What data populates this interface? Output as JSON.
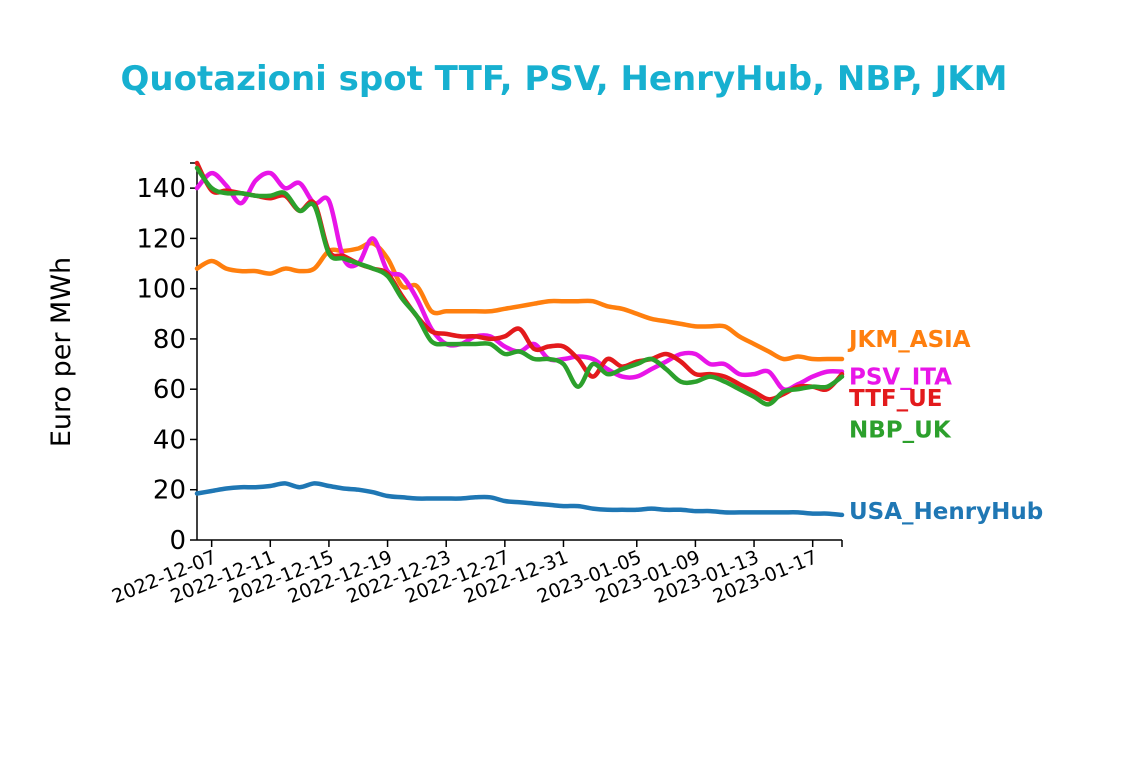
{
  "chart_data": {
    "type": "line",
    "title": "Quotazioni spot TTF, PSV, HenryHub, NBP, JKM",
    "xlabel": "",
    "ylabel": "Euro per MWh",
    "ylim": [
      0,
      150
    ],
    "yticks": [
      0,
      20,
      40,
      60,
      80,
      100,
      120,
      140
    ],
    "xlim": [
      "2022-12-06",
      "2023-01-19"
    ],
    "xticks": [
      "2022-12-07",
      "2022-12-11",
      "2022-12-15",
      "2022-12-19",
      "2022-12-23",
      "2022-12-27",
      "2022-12-31",
      "2023-01-05",
      "2023-01-09",
      "2023-01-13",
      "2023-01-17"
    ],
    "grid": false,
    "legend": "none",
    "x": [
      "2022-12-06",
      "2022-12-07",
      "2022-12-08",
      "2022-12-09",
      "2022-12-10",
      "2022-12-11",
      "2022-12-12",
      "2022-12-13",
      "2022-12-14",
      "2022-12-15",
      "2022-12-16",
      "2022-12-17",
      "2022-12-18",
      "2022-12-19",
      "2022-12-20",
      "2022-12-21",
      "2022-12-22",
      "2022-12-23",
      "2022-12-24",
      "2022-12-25",
      "2022-12-26",
      "2022-12-27",
      "2022-12-28",
      "2022-12-29",
      "2022-12-30",
      "2022-12-31",
      "2023-01-01",
      "2023-01-02",
      "2023-01-03",
      "2023-01-04",
      "2023-01-05",
      "2023-01-06",
      "2023-01-07",
      "2023-01-08",
      "2023-01-09",
      "2023-01-10",
      "2023-01-11",
      "2023-01-12",
      "2023-01-13",
      "2023-01-14",
      "2023-01-15",
      "2023-01-16",
      "2023-01-17",
      "2023-01-18",
      "2023-01-19"
    ],
    "series": [
      {
        "name": "JKM_ASIA",
        "color": "#ff7f0e",
        "values": [
          108,
          111,
          108,
          107,
          107,
          106,
          108,
          107,
          108,
          115,
          115,
          116,
          118,
          112,
          101,
          101,
          91,
          91,
          91,
          91,
          91,
          92,
          93,
          94,
          95,
          95,
          95,
          95,
          93,
          92,
          90,
          88,
          87,
          86,
          85,
          85,
          85,
          81,
          78,
          75,
          72,
          73,
          72,
          72,
          72
        ]
      },
      {
        "name": "PSV_ITA",
        "color": "#e815e8",
        "values": [
          140,
          146,
          141,
          134,
          143,
          146,
          140,
          142,
          134,
          135,
          112,
          110,
          120,
          107,
          105,
          96,
          84,
          78,
          78,
          81,
          81,
          77,
          75,
          78,
          72,
          72,
          73,
          72,
          68,
          65,
          65,
          68,
          71,
          74,
          74,
          70,
          70,
          66,
          66,
          67,
          60,
          62,
          65,
          67,
          67
        ]
      },
      {
        "name": "TTF_UE",
        "color": "#e31a1c",
        "values": [
          150,
          139,
          139,
          138,
          137,
          136,
          137,
          131,
          134,
          115,
          113,
          110,
          108,
          106,
          97,
          89,
          83,
          82,
          81,
          81,
          80,
          81,
          84,
          76,
          77,
          77,
          72,
          65,
          72,
          69,
          71,
          72,
          74,
          71,
          66,
          66,
          65,
          62,
          59,
          56,
          58,
          61,
          61,
          60,
          66
        ]
      },
      {
        "name": "NBP_UK",
        "color": "#2ca02c",
        "values": [
          148,
          140,
          138,
          138,
          137,
          137,
          138,
          131,
          133,
          114,
          112,
          110,
          108,
          105,
          96,
          89,
          79,
          78,
          78,
          78,
          78,
          74,
          75,
          72,
          72,
          70,
          61,
          70,
          66,
          68,
          70,
          72,
          68,
          63,
          63,
          65,
          63,
          60,
          57,
          54,
          59,
          60,
          61,
          61,
          65
        ]
      },
      {
        "name": "USA_HenryHub",
        "color": "#1f77b4",
        "values": [
          18.5,
          19.5,
          20.5,
          21,
          21,
          21.5,
          22.5,
          21,
          22.5,
          21.5,
          20.5,
          20,
          19,
          17.5,
          17,
          16.5,
          16.5,
          16.5,
          16.5,
          17,
          17,
          15.5,
          15,
          14.5,
          14,
          13.5,
          13.5,
          12.5,
          12,
          12,
          12,
          12.5,
          12,
          12,
          11.5,
          11.5,
          11,
          11,
          11,
          11,
          11,
          11,
          10.5,
          10.5,
          10
        ]
      }
    ]
  }
}
